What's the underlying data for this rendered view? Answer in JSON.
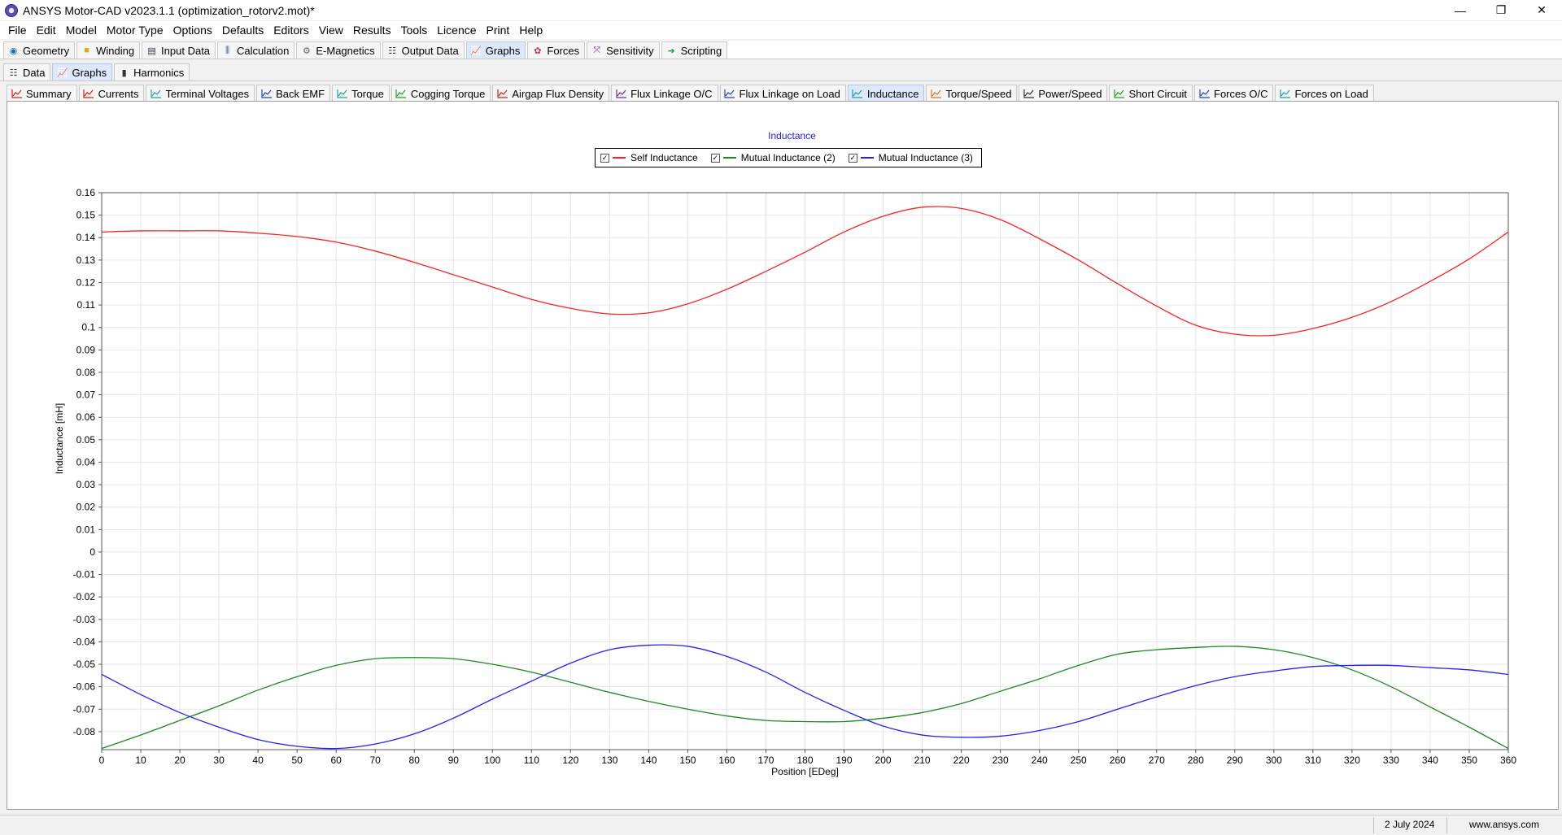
{
  "window": {
    "title": "ANSYS Motor-CAD v2023.1.1 (optimization_rotorv2.mot)*",
    "minimize": "—",
    "maximize": "❐",
    "close": "✕"
  },
  "menu": [
    "File",
    "Edit",
    "Model",
    "Motor Type",
    "Options",
    "Defaults",
    "Editors",
    "View",
    "Results",
    "Tools",
    "Licence",
    "Print",
    "Help"
  ],
  "main_tabs": [
    {
      "label": "Geometry",
      "icon": "geometry-icon"
    },
    {
      "label": "Winding",
      "icon": "winding-icon"
    },
    {
      "label": "Input Data",
      "icon": "input-data-icon"
    },
    {
      "label": "Calculation",
      "icon": "calculation-icon"
    },
    {
      "label": "E-Magnetics",
      "icon": "e-magnetics-icon"
    },
    {
      "label": "Output Data",
      "icon": "output-data-icon"
    },
    {
      "label": "Graphs",
      "icon": "graphs-icon",
      "active": true
    },
    {
      "label": "Forces",
      "icon": "forces-icon"
    },
    {
      "label": "Sensitivity",
      "icon": "sensitivity-icon"
    },
    {
      "label": "Scripting",
      "icon": "scripting-icon"
    }
  ],
  "sub_tabs": [
    {
      "label": "Data",
      "icon": "data-grid-icon"
    },
    {
      "label": "Graphs",
      "icon": "graphs-icon",
      "active": true
    },
    {
      "label": "Harmonics",
      "icon": "harmonics-icon"
    }
  ],
  "graph_tabs": [
    {
      "label": "Summary"
    },
    {
      "label": "Currents"
    },
    {
      "label": "Terminal Voltages"
    },
    {
      "label": "Back EMF"
    },
    {
      "label": "Torque"
    },
    {
      "label": "Cogging Torque"
    },
    {
      "label": "Airgap Flux Density"
    },
    {
      "label": "Flux Linkage O/C"
    },
    {
      "label": "Flux Linkage on Load"
    },
    {
      "label": "Inductance",
      "active": true
    },
    {
      "label": "Torque/Speed"
    },
    {
      "label": "Power/Speed"
    },
    {
      "label": "Short Circuit"
    },
    {
      "label": "Forces O/C"
    },
    {
      "label": "Forces on Load"
    }
  ],
  "colors": {
    "self": "#ff2020",
    "mutual2": "#1a8a1a",
    "mutual3": "#2020ff",
    "title": "#1a1aff"
  },
  "chart_data": {
    "type": "line",
    "title": "Inductance",
    "xlabel": "Position [EDeg]",
    "ylabel": "Inductance [mH]",
    "xlim": [
      0,
      360
    ],
    "ylim": [
      -0.09,
      0.16
    ],
    "xticks": [
      0,
      10,
      20,
      30,
      40,
      50,
      60,
      70,
      80,
      90,
      100,
      110,
      120,
      130,
      140,
      150,
      160,
      170,
      180,
      190,
      200,
      210,
      220,
      230,
      240,
      250,
      260,
      270,
      280,
      290,
      300,
      310,
      320,
      330,
      340,
      350,
      360
    ],
    "yticks": [
      0.16,
      0.15,
      0.14,
      0.13,
      0.12,
      0.11,
      0.1,
      0.09,
      0.08,
      0.07,
      0.06,
      0.05,
      0.04,
      0.03,
      0.02,
      0.01,
      0,
      -0.01,
      -0.02,
      -0.03,
      -0.04,
      -0.05,
      -0.06,
      -0.07,
      -0.08
    ],
    "grid": true,
    "legend_position": "top-center",
    "x": [
      0,
      10,
      20,
      30,
      40,
      50,
      60,
      70,
      80,
      90,
      100,
      110,
      120,
      130,
      140,
      150,
      160,
      170,
      180,
      190,
      200,
      210,
      220,
      230,
      240,
      250,
      260,
      270,
      280,
      290,
      300,
      310,
      320,
      330,
      340,
      350,
      360
    ],
    "series": [
      {
        "name": "Self Inductance",
        "color": "#ff2020",
        "values": [
          0.1425,
          0.143,
          0.143,
          0.143,
          0.142,
          0.1405,
          0.138,
          0.134,
          0.129,
          0.1235,
          0.118,
          0.1125,
          0.1085,
          0.106,
          0.1065,
          0.1105,
          0.117,
          0.125,
          0.1335,
          0.1425,
          0.1495,
          0.1535,
          0.153,
          0.148,
          0.1395,
          0.13,
          0.1195,
          0.1095,
          0.101,
          0.097,
          0.0965,
          0.0995,
          0.1045,
          0.1115,
          0.1205,
          0.1305,
          0.1425
        ]
      },
      {
        "name": "Mutual Inductance (2)",
        "color": "#1a8a1a",
        "values": [
          -0.0875,
          -0.0815,
          -0.075,
          -0.0685,
          -0.0615,
          -0.0555,
          -0.0505,
          -0.0475,
          -0.047,
          -0.0475,
          -0.05,
          -0.0535,
          -0.058,
          -0.0625,
          -0.0665,
          -0.07,
          -0.073,
          -0.075,
          -0.0755,
          -0.0755,
          -0.074,
          -0.0715,
          -0.0675,
          -0.062,
          -0.0565,
          -0.0505,
          -0.0455,
          -0.0435,
          -0.0425,
          -0.042,
          -0.0435,
          -0.047,
          -0.0525,
          -0.06,
          -0.069,
          -0.078,
          -0.0875
        ]
      },
      {
        "name": "Mutual Inductance (3)",
        "color": "#2020ff",
        "values": [
          -0.0545,
          -0.0635,
          -0.0715,
          -0.078,
          -0.0835,
          -0.0865,
          -0.0875,
          -0.0855,
          -0.081,
          -0.074,
          -0.0655,
          -0.0575,
          -0.0495,
          -0.0435,
          -0.0415,
          -0.042,
          -0.0465,
          -0.0535,
          -0.0625,
          -0.0705,
          -0.0775,
          -0.0815,
          -0.0825,
          -0.082,
          -0.0795,
          -0.0755,
          -0.07,
          -0.0645,
          -0.0595,
          -0.0555,
          -0.053,
          -0.051,
          -0.0505,
          -0.0505,
          -0.0515,
          -0.0525,
          -0.0545
        ]
      }
    ]
  },
  "status": {
    "date": "2 July 2024",
    "website": "www.ansys.com"
  }
}
